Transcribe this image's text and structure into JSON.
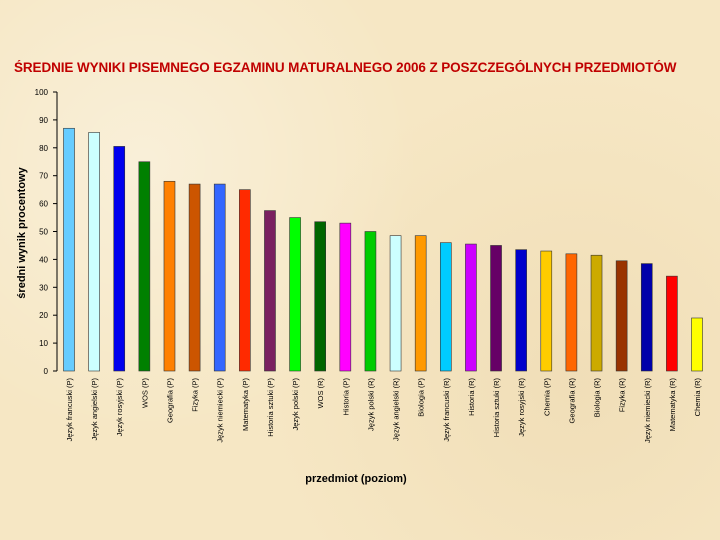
{
  "chart_data": {
    "type": "bar",
    "title": "ŚREDNIE WYNIKI PISEMNEGO EGZAMINU MATURALNEGO 2006 Z POSZCZEGÓLNYCH PRZEDMIOTÓW",
    "xlabel": "przedmiot (poziom)",
    "ylabel": "średni wynik procentowy",
    "ylim": [
      0,
      100
    ],
    "yticks": [
      0,
      10,
      20,
      30,
      40,
      50,
      60,
      70,
      80,
      90,
      100
    ],
    "grid": false,
    "categories": [
      "Język francuski (P)",
      "Język angielski (P)",
      "Język rosyjski (P)",
      "WOS (P)",
      "Geografia (P)",
      "Fizyka (P)",
      "Język niemiecki (P)",
      "Matematyka (P)",
      "Historia sztuki (P)",
      "Język polski (P)",
      "WOS (R)",
      "Historia (P)",
      "Język polski (R)",
      "Język angielski (R)",
      "Biologia (P)",
      "Język francuski (R)",
      "Historia (R)",
      "Historia sztuki (R)",
      "Język rosyjski (R)",
      "Chemia (P)",
      "Geografia (R)",
      "Biologia (R)",
      "Fizyka (R)",
      "Język niemiecki (R)",
      "Matematyka (R)",
      "Chemia (R)"
    ],
    "values": [
      87,
      85.5,
      80.5,
      75,
      68,
      67,
      67,
      65,
      57.5,
      55,
      53.5,
      53,
      50,
      48.5,
      48.5,
      46,
      45.5,
      45,
      43.5,
      43,
      42,
      41.5,
      39.5,
      38.5,
      34,
      19
    ],
    "colors": [
      "#66ccff",
      "#ccffff",
      "#0000ee",
      "#008000",
      "#ff8000",
      "#cc5500",
      "#3366ff",
      "#ff2a00",
      "#7a2060",
      "#00ff00",
      "#006600",
      "#ff00ff",
      "#00cc00",
      "#ccffff",
      "#ff9900",
      "#00ccff",
      "#cc00ff",
      "#660066",
      "#0000cc",
      "#ffcc00",
      "#ff6600",
      "#ccaa00",
      "#993300",
      "#0000aa",
      "#ff0000",
      "#ffff00"
    ]
  }
}
